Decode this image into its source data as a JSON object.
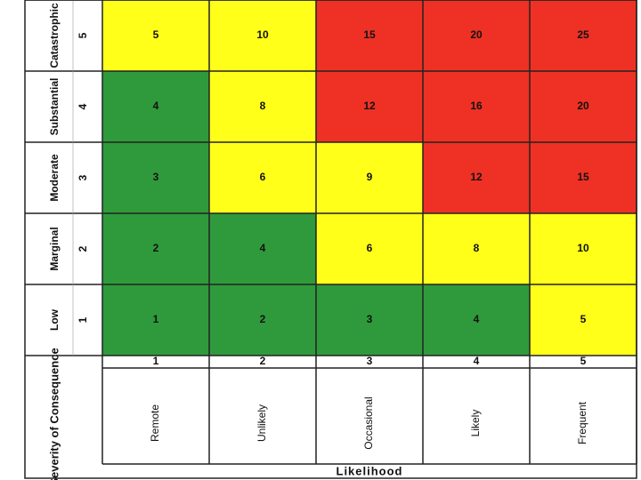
{
  "severity_axis": {
    "title": "Severity of Consequence",
    "levels": [
      {
        "name": "Catastrophic",
        "number": 5
      },
      {
        "name": "Substantial",
        "number": 4
      },
      {
        "name": "Moderate",
        "number": 3
      },
      {
        "name": "Marginal",
        "number": 2
      },
      {
        "name": "Low",
        "number": 1
      }
    ]
  },
  "likelihood_axis": {
    "title": "Likelihood",
    "levels": [
      {
        "name": "Remote",
        "number": 1
      },
      {
        "name": "Unlikely",
        "number": 2
      },
      {
        "name": "Occasional",
        "number": 3
      },
      {
        "name": "Likely",
        "number": 4
      },
      {
        "name": "Frequent",
        "number": 5
      }
    ]
  },
  "matrix": {
    "rows": [
      [
        5,
        10,
        15,
        20,
        25
      ],
      [
        4,
        8,
        12,
        16,
        20
      ],
      [
        3,
        6,
        9,
        12,
        15
      ],
      [
        2,
        4,
        6,
        8,
        10
      ],
      [
        1,
        2,
        3,
        4,
        5
      ]
    ],
    "cell_colors": [
      [
        "#ffff1a",
        "#ffff1a",
        "#ee3124",
        "#ee3124",
        "#ee3124"
      ],
      [
        "#2f9a3c",
        "#ffff1a",
        "#ee3124",
        "#ee3124",
        "#ee3124"
      ],
      [
        "#2f9a3c",
        "#ffff1a",
        "#ffff1a",
        "#ee3124",
        "#ee3124"
      ],
      [
        "#2f9a3c",
        "#2f9a3c",
        "#ffff1a",
        "#ffff1a",
        "#ffff1a"
      ],
      [
        "#2f9a3c",
        "#2f9a3c",
        "#2f9a3c",
        "#2f9a3c",
        "#ffff1a"
      ]
    ]
  }
}
